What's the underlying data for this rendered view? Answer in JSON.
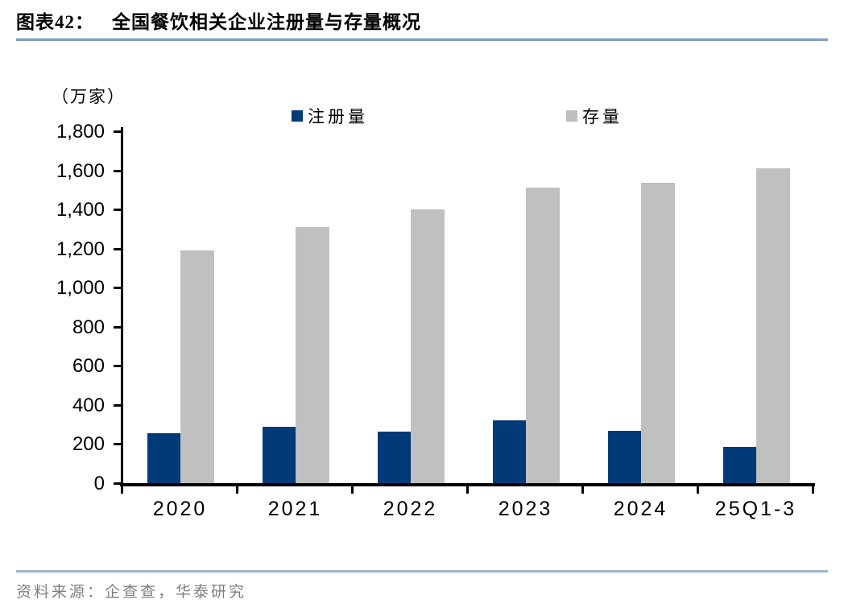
{
  "figure": {
    "label": "图表42：",
    "title": "全国餐饮相关企业注册量与存量概况",
    "unit_label": "（万家）",
    "source": "资料来源：企查查，华泰研究"
  },
  "legend": {
    "items": [
      {
        "label": "注册量",
        "color": "#003a78"
      },
      {
        "label": "存量",
        "color": "#bfbfbf"
      }
    ]
  },
  "chart_data": {
    "type": "bar",
    "title": "全国餐饮相关企业注册量与存量概况",
    "unit": "万家",
    "categories": [
      "2020",
      "2021",
      "2022",
      "2023",
      "2024",
      "25Q1-3"
    ],
    "series": [
      {
        "name": "注册量",
        "key": "registrations",
        "color": "#003a78",
        "values": [
          255,
          290,
          265,
          320,
          268,
          185
        ]
      },
      {
        "name": "存量",
        "key": "stock",
        "color": "#c0c0c0",
        "values": [
          1190,
          1310,
          1400,
          1510,
          1535,
          1610
        ]
      }
    ],
    "ylim": [
      0,
      1800
    ],
    "ytick_step": 200,
    "ytick_labels": [
      "0",
      "200",
      "400",
      "600",
      "800",
      "1,000",
      "1,200",
      "1,400",
      "1,600",
      "1,800"
    ],
    "grid": false,
    "legend_position": "top"
  },
  "colors": {
    "title_rule": "#84a3c4",
    "source_rule": "#9db4ca",
    "axis": "#000000",
    "source_text": "#7f7f7f"
  }
}
